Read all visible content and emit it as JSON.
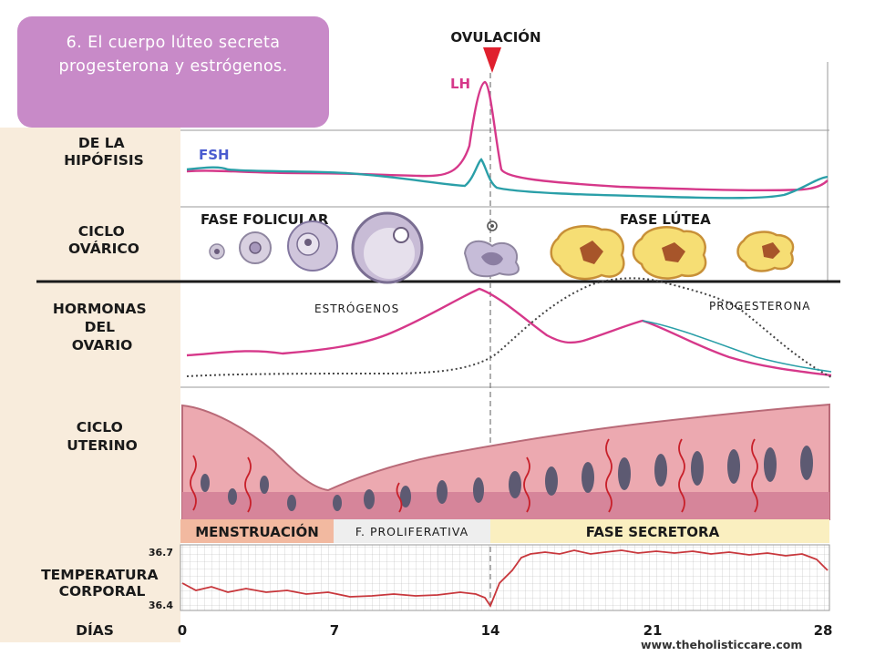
{
  "callout": {
    "text": "6. El cuerpo lúteo secreta progesterona y estrógenos."
  },
  "ovulation": {
    "label": "OVULACIÓN"
  },
  "rows": {
    "hipofisis": [
      "DE LA",
      "HIPÓFISIS"
    ],
    "ovarico": [
      "CICLO",
      "OVÁRICO"
    ],
    "hormonas": [
      "HORMONAS",
      "DEL",
      "OVARIO"
    ],
    "uterino": [
      "CICLO",
      "UTERINO"
    ],
    "temperatura": [
      "TEMPERATURA",
      "CORPORAL"
    ],
    "dias": "DÍAS"
  },
  "hormones": {
    "lh": "LH",
    "fsh": "FSH",
    "estrogen": "ESTRÓGENOS",
    "progesterone": "PROGESTERONA"
  },
  "phases": {
    "follicular": "FASE FOLICULAR",
    "luteal": "FASE   LÚTEA",
    "menstruation": "MENSTRUACIÓN",
    "proliferative": "F. PROLIFERATIVA",
    "secretory": "FASE SECRETORA"
  },
  "temperature": {
    "max": "36.7",
    "min": "36.4"
  },
  "days": [
    "0",
    "7",
    "14",
    "21",
    "28"
  ],
  "credit": "www.theholisticcare.com",
  "colors": {
    "lh": "#d6388a",
    "fsh": "#2a9fa8",
    "estrogen": "#d6388a",
    "progesterone": "#444444",
    "callout": "#c88ac8",
    "menstruation": "#f2b9a0",
    "proliferative": "#eeeeee",
    "secretory": "#faefc0",
    "temperature": "#c8373c",
    "ovulation_marker": "#e0202e"
  }
}
